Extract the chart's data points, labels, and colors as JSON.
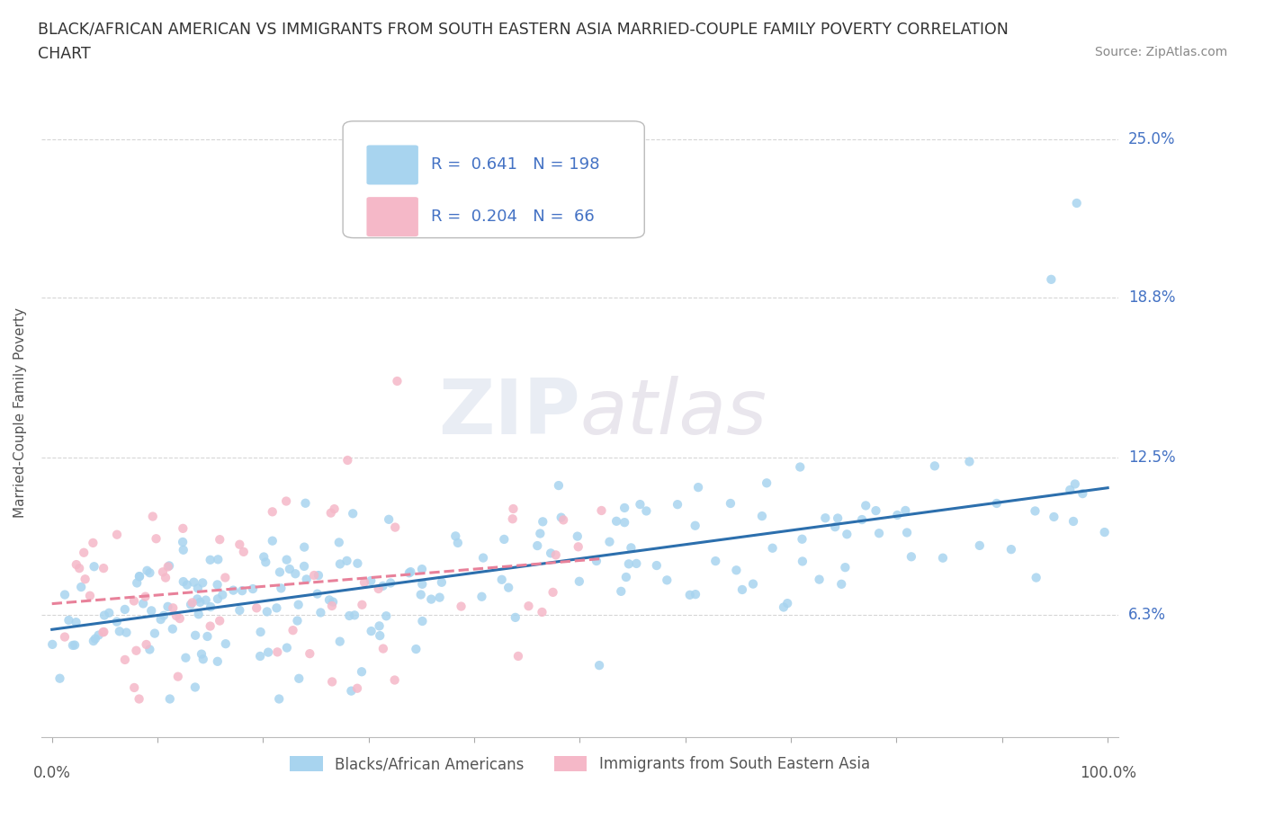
{
  "title_line1": "BLACK/AFRICAN AMERICAN VS IMMIGRANTS FROM SOUTH EASTERN ASIA MARRIED-COUPLE FAMILY POVERTY CORRELATION",
  "title_line2": "CHART",
  "source": "Source: ZipAtlas.com",
  "ylabel": "Married-Couple Family Poverty",
  "xlim": [
    -1,
    101
  ],
  "ylim": [
    1.5,
    27
  ],
  "yticks": [
    6.3,
    12.5,
    18.8,
    25.0
  ],
  "ytick_labels": [
    "6.3%",
    "12.5%",
    "18.8%",
    "25.0%"
  ],
  "blue_scatter_color": "#a8d4ef",
  "blue_line_color": "#2c6fad",
  "pink_scatter_color": "#f5b8c8",
  "pink_line_color": "#e8819a",
  "R_blue": 0.641,
  "N_blue": 198,
  "R_pink": 0.204,
  "N_pink": 66,
  "legend_label_blue": "Blacks/African Americans",
  "legend_label_pink": "Immigrants from South Eastern Asia",
  "watermark_zip": "ZIP",
  "watermark_atlas": "atlas",
  "background_color": "#ffffff",
  "grid_color": "#cccccc",
  "legend_text_color": "#4472c4",
  "axis_label_color": "#555555",
  "title_color": "#333333"
}
